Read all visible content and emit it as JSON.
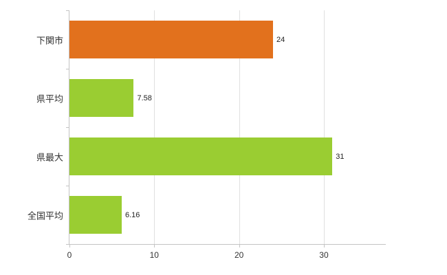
{
  "chart_data": {
    "type": "bar",
    "orientation": "horizontal",
    "title": "",
    "xlabel": "",
    "ylabel": "",
    "categories": [
      "下関市",
      "県平均",
      "県最大",
      "全国平均"
    ],
    "values": [
      24,
      7.58,
      31,
      6.16
    ],
    "value_labels": [
      "24",
      "7.58",
      "31",
      "6.16"
    ],
    "bar_colors": [
      "#e2711d",
      "#9acd32",
      "#9acd32",
      "#9acd32"
    ],
    "xlim": [
      0,
      37.3
    ],
    "xticks": [
      0,
      10,
      20,
      30
    ],
    "grid": "vertical-gridlines",
    "legend": "none"
  },
  "colors": {
    "background": "#ffffff",
    "axis": "#c3c3c3",
    "gridline": "#e0e0e0",
    "text": "#333333",
    "orange_bar": "#e2711d",
    "green_bar": "#9acd32"
  }
}
